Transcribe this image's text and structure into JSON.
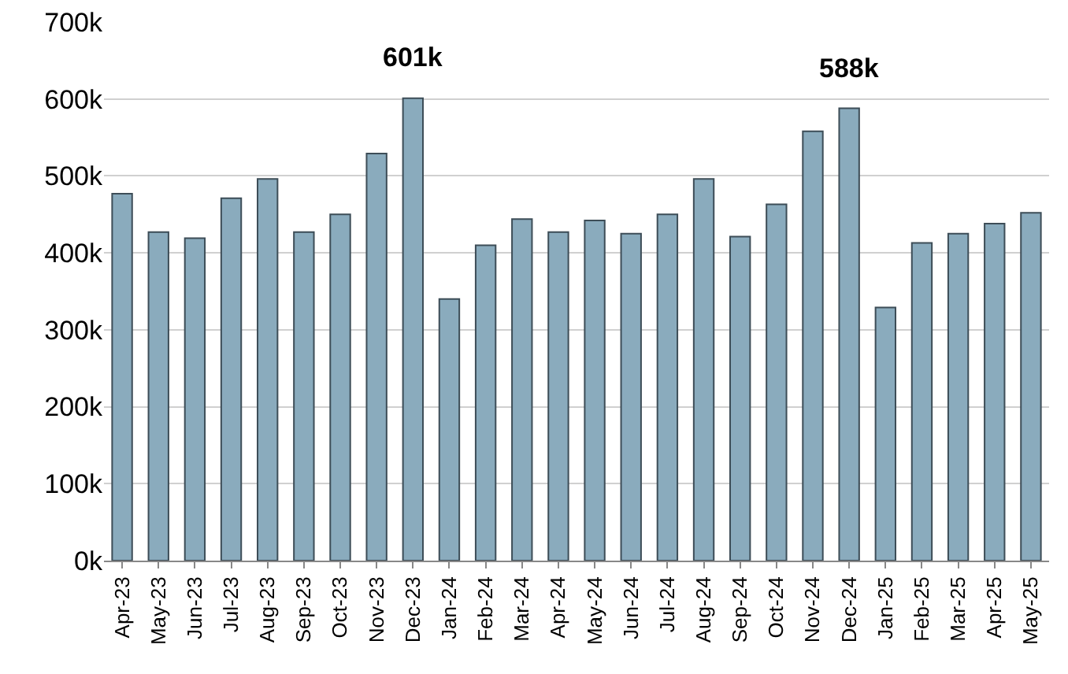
{
  "chart_data": {
    "type": "bar",
    "categories": [
      "Apr-23",
      "May-23",
      "Jun-23",
      "Jul-23",
      "Aug-23",
      "Sep-23",
      "Oct-23",
      "Nov-23",
      "Dec-23",
      "Jan-24",
      "Feb-24",
      "Mar-24",
      "Apr-24",
      "May-24",
      "Jun-24",
      "Jul-24",
      "Aug-24",
      "Sep-24",
      "Oct-24",
      "Nov-24",
      "Dec-24",
      "Jan-25",
      "Feb-25",
      "Mar-25",
      "Apr-25",
      "May-25"
    ],
    "values": [
      477000,
      427000,
      419000,
      471000,
      496000,
      427000,
      450000,
      529000,
      601000,
      340000,
      410000,
      444000,
      427000,
      442000,
      425000,
      450000,
      496000,
      421000,
      463000,
      558000,
      588000,
      329000,
      413000,
      425000,
      438000,
      452000
    ],
    "color": "#8aabbd",
    "ylim": [
      0,
      700000
    ],
    "yticks": [
      {
        "value": 0,
        "label": "0k"
      },
      {
        "value": 100000,
        "label": "100k"
      },
      {
        "value": 200000,
        "label": "200k"
      },
      {
        "value": 300000,
        "label": "300k"
      },
      {
        "value": 400000,
        "label": "400k"
      },
      {
        "value": 500000,
        "label": "500k"
      },
      {
        "value": 600000,
        "label": "600k"
      },
      {
        "value": 700000,
        "label": "700k"
      }
    ],
    "grid": "y",
    "annotations": [
      {
        "text": "601k",
        "x": "Dec-23",
        "y": 601000
      },
      {
        "text": "588k",
        "x": "Dec-24",
        "y": 588000
      }
    ]
  }
}
